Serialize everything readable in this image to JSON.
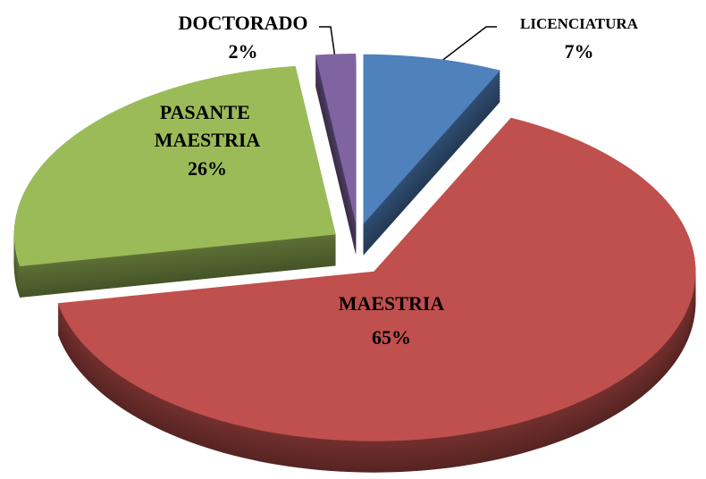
{
  "chart_data": {
    "type": "pie3d",
    "categories": [
      "LICENCIATURA",
      "MAESTRIA",
      "PASANTE MAESTRIA",
      "DOCTORADO"
    ],
    "values": [
      7,
      65,
      26,
      2
    ],
    "value_labels": [
      "7%",
      "65%",
      "26%",
      "2%"
    ],
    "colors": [
      "#4f81bd",
      "#c0504d",
      "#9bbb59",
      "#8064a2"
    ],
    "exploded": true
  }
}
